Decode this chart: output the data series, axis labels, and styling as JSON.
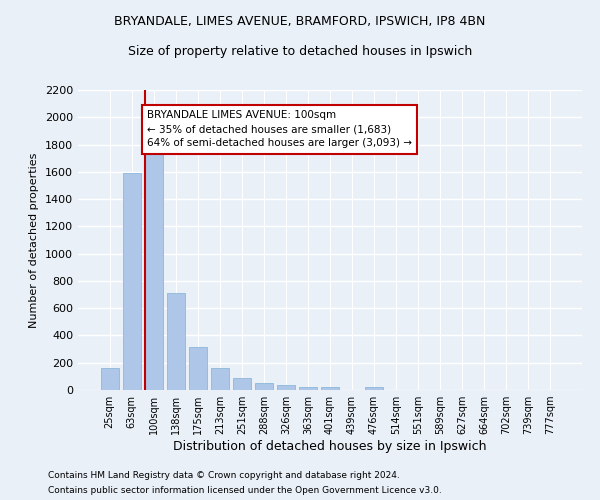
{
  "title_line1": "BRYANDALE, LIMES AVENUE, BRAMFORD, IPSWICH, IP8 4BN",
  "title_line2": "Size of property relative to detached houses in Ipswich",
  "xlabel": "Distribution of detached houses by size in Ipswich",
  "ylabel": "Number of detached properties",
  "categories": [
    "25sqm",
    "63sqm",
    "100sqm",
    "138sqm",
    "175sqm",
    "213sqm",
    "251sqm",
    "288sqm",
    "326sqm",
    "363sqm",
    "401sqm",
    "439sqm",
    "476sqm",
    "514sqm",
    "551sqm",
    "589sqm",
    "627sqm",
    "664sqm",
    "702sqm",
    "739sqm",
    "777sqm"
  ],
  "values": [
    160,
    1590,
    1760,
    710,
    315,
    160,
    90,
    55,
    35,
    25,
    20,
    0,
    20,
    0,
    0,
    0,
    0,
    0,
    0,
    0,
    0
  ],
  "highlight_index": 2,
  "bar_color": "#aec6e8",
  "highlight_color": "#c00000",
  "bar_edge_color": "#7fb0d8",
  "annotation_text": "BRYANDALE LIMES AVENUE: 100sqm\n← 35% of detached houses are smaller (1,683)\n64% of semi-detached houses are larger (3,093) →",
  "annotation_box_color": "#ffffff",
  "annotation_box_edge_color": "#c00000",
  "ylim": [
    0,
    2200
  ],
  "yticks": [
    0,
    200,
    400,
    600,
    800,
    1000,
    1200,
    1400,
    1600,
    1800,
    2000,
    2200
  ],
  "footer_line1": "Contains HM Land Registry data © Crown copyright and database right 2024.",
  "footer_line2": "Contains public sector information licensed under the Open Government Licence v3.0.",
  "background_color": "#eaf0f8",
  "plot_background_color": "#eaf0f8",
  "grid_color": "#ffffff",
  "font_family": "DejaVu Sans"
}
